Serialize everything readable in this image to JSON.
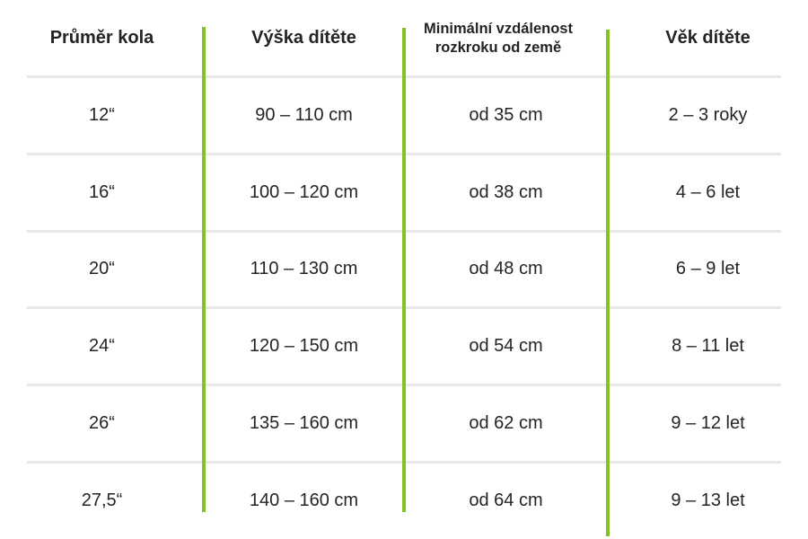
{
  "chart_data": {
    "type": "table",
    "title": "",
    "columns": [
      "Průměr kola",
      "Výška dítěte",
      "Minimální vzdálenost rozkroku od země",
      "Věk dítěte"
    ],
    "rows": [
      [
        "12“",
        "90 – 110 cm",
        "od 35 cm",
        "2 – 3 roky"
      ],
      [
        "16“",
        "100 – 120 cm",
        "od 38 cm",
        "4 – 6 let"
      ],
      [
        "20“",
        "110 – 130 cm",
        "od 48 cm",
        "6 – 9 let"
      ],
      [
        "24“",
        "120 – 150 cm",
        "od 54 cm",
        "8 – 11 let"
      ],
      [
        "26“",
        "135 – 160 cm",
        "od 62 cm",
        "9 – 12 let"
      ],
      [
        "27,5“",
        "140 – 160 cm",
        "od 64 cm",
        "9 – 13 let"
      ]
    ],
    "layout": {
      "grid": "horizontal row dividers between all rows, green vertical lines between columns",
      "legend_position": "none"
    }
  },
  "colors": {
    "accent_green": "#85c226",
    "row_divider_gray": "#e9e9e9",
    "text": "#242424",
    "background": "#ffffff"
  }
}
